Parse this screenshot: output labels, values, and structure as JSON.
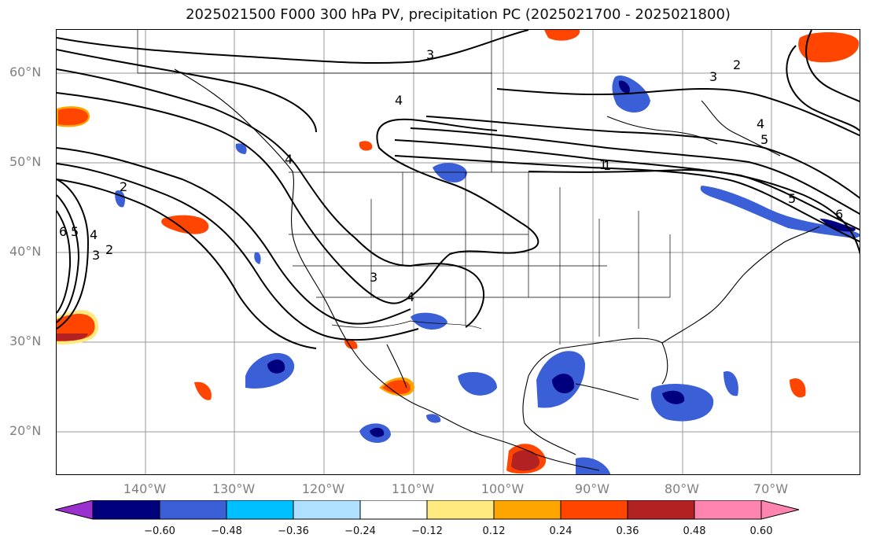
{
  "title": "2025021500 F000 300 hPa PV, precipitation PC (2025021700 - 2025021800)",
  "lat_labels": [
    "60°N",
    "50°N",
    "40°N",
    "30°N",
    "20°N"
  ],
  "lon_labels": [
    "140°W",
    "130°W",
    "120°W",
    "110°W",
    "100°W",
    "90°W",
    "80°W",
    "70°W"
  ],
  "colorbar": {
    "ticks": [
      "−0.60",
      "−0.48",
      "−0.36",
      "−0.24",
      "−0.12",
      "0.12",
      "0.24",
      "0.36",
      "0.48",
      "0.60"
    ],
    "colors": [
      "#9b30d0",
      "#00007f",
      "#3a5fd6",
      "#00bfff",
      "#b0e0ff",
      "#ffffff",
      "#ffea80",
      "#ffa500",
      "#ff4500",
      "#b22222",
      "#ff85b0"
    ]
  },
  "contour_labels": [
    "3",
    "4",
    "1",
    "2",
    "4",
    "5",
    "6",
    "5",
    "4",
    "3",
    "2",
    "6",
    "5",
    "4",
    "3",
    "2",
    "1",
    "3",
    "4"
  ]
}
